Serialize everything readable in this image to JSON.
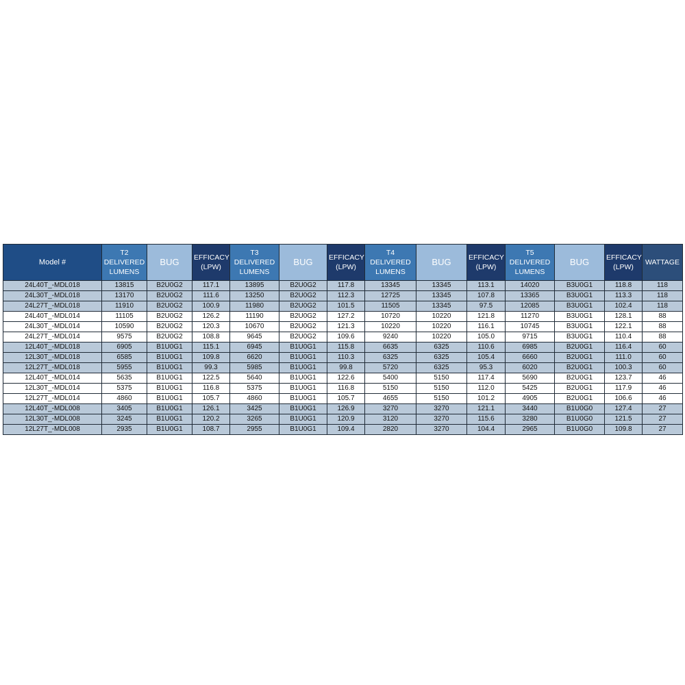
{
  "colors": {
    "dark": "#1e3a6b",
    "mid": "#3d78b2",
    "light": "#9cbbdb",
    "model": "#1f4d86",
    "wattage": "#2c4e7a",
    "row_shade": "#b9c9d9",
    "row_plain": "#ffffff"
  },
  "table": {
    "headers": [
      {
        "text": "Model #",
        "tone": "model"
      },
      {
        "text": "T2\nDELIVERED\nLUMENS",
        "tone": "mid"
      },
      {
        "text": "BUG",
        "tone": "light"
      },
      {
        "text": "EFFICACY\n(LPW)",
        "tone": "dark"
      },
      {
        "text": "T3\nDELIVERED\nLUMENS",
        "tone": "mid"
      },
      {
        "text": "BUG",
        "tone": "light"
      },
      {
        "text": "EFFICACY\n(LPW)",
        "tone": "dark"
      },
      {
        "text": "T4 DELIVERED\nLUMENS",
        "tone": "mid"
      },
      {
        "text": "BUG",
        "tone": "light"
      },
      {
        "text": "EFFICACY\n(LPW)",
        "tone": "dark"
      },
      {
        "text": "T5 DELIVERED\nLUMENS",
        "tone": "mid"
      },
      {
        "text": "BUG",
        "tone": "light"
      },
      {
        "text": "EFFICACY\n(LPW)",
        "tone": "dark"
      },
      {
        "text": "WATTAGE",
        "tone": "wattage"
      }
    ],
    "rows": [
      {
        "shade": true,
        "cells": [
          "24L40T_-MDL018",
          "13815",
          "B2U0G2",
          "117.1",
          "13895",
          "B2U0G2",
          "117.8",
          "13345",
          "13345",
          "113.1",
          "14020",
          "B3U0G1",
          "118.8",
          "118"
        ]
      },
      {
        "shade": true,
        "cells": [
          "24L30T_-MDL018",
          "13170",
          "B2U0G2",
          "111.6",
          "13250",
          "B2U0G2",
          "112.3",
          "12725",
          "13345",
          "107.8",
          "13365",
          "B3U0G1",
          "113.3",
          "118"
        ]
      },
      {
        "shade": true,
        "cells": [
          "24L27T_-MDL018",
          "11910",
          "B2U0G2",
          "100.9",
          "11980",
          "B2U0G2",
          "101.5",
          "11505",
          "13345",
          "97.5",
          "12085",
          "B3U0G1",
          "102.4",
          "118"
        ]
      },
      {
        "shade": false,
        "cells": [
          "24L40T_-MDL014",
          "11105",
          "B2U0G2",
          "126.2",
          "11190",
          "B2U0G2",
          "127.2",
          "10720",
          "10220",
          "121.8",
          "11270",
          "B3U0G1",
          "128.1",
          "88"
        ]
      },
      {
        "shade": false,
        "cells": [
          "24L30T_-MDL014",
          "10590",
          "B2U0G2",
          "120.3",
          "10670",
          "B2U0G2",
          "121.3",
          "10220",
          "10220",
          "116.1",
          "10745",
          "B3U0G1",
          "122.1",
          "88"
        ]
      },
      {
        "shade": false,
        "cells": [
          "24L27T_-MDL014",
          "9575",
          "B2U0G2",
          "108.8",
          "9645",
          "B2U0G2",
          "109.6",
          "9240",
          "10220",
          "105.0",
          "9715",
          "B3U0G1",
          "110.4",
          "88"
        ]
      },
      {
        "shade": true,
        "cells": [
          "12L40T_-MDL018",
          "6905",
          "B1U0G1",
          "115.1",
          "6945",
          "B1U0G1",
          "115.8",
          "6635",
          "6325",
          "110.6",
          "6985",
          "B2U0G1",
          "116.4",
          "60"
        ]
      },
      {
        "shade": true,
        "cells": [
          "12L30T_-MDL018",
          "6585",
          "B1U0G1",
          "109.8",
          "6620",
          "B1U0G1",
          "110.3",
          "6325",
          "6325",
          "105.4",
          "6660",
          "B2U0G1",
          "111.0",
          "60"
        ]
      },
      {
        "shade": true,
        "cells": [
          "12L27T_-MDL018",
          "5955",
          "B1U0G1",
          "99.3",
          "5985",
          "B1U0G1",
          "99.8",
          "5720",
          "6325",
          "95.3",
          "6020",
          "B2U0G1",
          "100.3",
          "60"
        ]
      },
      {
        "shade": false,
        "cells": [
          "12L40T_-MDL014",
          "5635",
          "B1U0G1",
          "122.5",
          "5640",
          "B1U0G1",
          "122.6",
          "5400",
          "5150",
          "117.4",
          "5690",
          "B2U0G1",
          "123.7",
          "46"
        ]
      },
      {
        "shade": false,
        "cells": [
          "12L30T_-MDL014",
          "5375",
          "B1U0G1",
          "116.8",
          "5375",
          "B1U0G1",
          "116.8",
          "5150",
          "5150",
          "112.0",
          "5425",
          "B2U0G1",
          "117.9",
          "46"
        ]
      },
      {
        "shade": false,
        "cells": [
          "12L27T_-MDL014",
          "4860",
          "B1U0G1",
          "105.7",
          "4860",
          "B1U0G1",
          "105.7",
          "4655",
          "5150",
          "101.2",
          "4905",
          "B2U0G1",
          "106.6",
          "46"
        ]
      },
      {
        "shade": true,
        "cells": [
          "12L40T_-MDL008",
          "3405",
          "B1U0G1",
          "126.1",
          "3425",
          "B1U0G1",
          "126.9",
          "3270",
          "3270",
          "121.1",
          "3440",
          "B1U0G0",
          "127.4",
          "27"
        ]
      },
      {
        "shade": true,
        "cells": [
          "12L30T_-MDL008",
          "3245",
          "B1U0G1",
          "120.2",
          "3265",
          "B1U0G1",
          "120.9",
          "3120",
          "3270",
          "115.6",
          "3280",
          "B1U0G0",
          "121.5",
          "27"
        ]
      },
      {
        "shade": true,
        "cells": [
          "12L27T_-MDL008",
          "2935",
          "B1U0G1",
          "108.7",
          "2955",
          "B1U0G1",
          "109.4",
          "2820",
          "3270",
          "104.4",
          "2965",
          "B1U0G0",
          "109.8",
          "27"
        ]
      }
    ]
  }
}
